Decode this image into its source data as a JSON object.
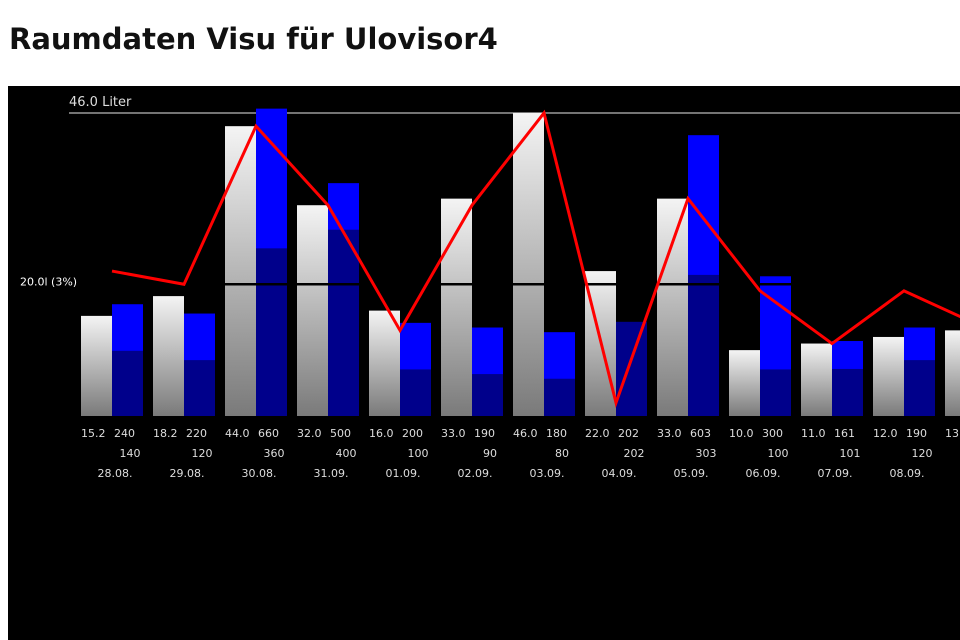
{
  "page": {
    "title": "Raumdaten Visu für Ulovisor4"
  },
  "chart_data": {
    "type": "bar",
    "max_label": "46.0 Liter",
    "ref_label": "20.0l (3%)",
    "ref_value": 20,
    "ylim": [
      0,
      50
    ],
    "y2lim": [
      0,
      700
    ],
    "categories": [
      "28.08.",
      "29.08.",
      "30.08.",
      "31.09.",
      "01.09.",
      "02.09.",
      "03.09.",
      "04.09.",
      "05.09.",
      "06.09.",
      "07.09.",
      "08.09.",
      ""
    ],
    "series": [
      {
        "values": [
          15.2,
          18.2,
          44.0,
          32.0,
          16.0,
          33.0,
          46.0,
          22.0,
          33.0,
          10.0,
          11.0,
          12.0,
          13
        ]
      },
      {
        "values": [
          240,
          220,
          660,
          500,
          200,
          190,
          180,
          202,
          603,
          300,
          161,
          190,
          null
        ]
      },
      {
        "values": [
          140,
          120,
          360,
          400,
          100,
          90,
          80,
          202,
          303,
          100,
          101,
          120,
          null
        ]
      },
      {
        "values": [
          22,
          20,
          44,
          32,
          13,
          32,
          46,
          2,
          33,
          19,
          11,
          19,
          14
        ]
      }
    ],
    "row1_labels": [
      [
        "15.2",
        "240"
      ],
      [
        "18.2",
        "220"
      ],
      [
        "44.0",
        "660"
      ],
      [
        "32.0",
        "500"
      ],
      [
        "16.0",
        "200"
      ],
      [
        "33.0",
        "190"
      ],
      [
        "46.0",
        "180"
      ],
      [
        "22.0",
        "202"
      ],
      [
        "33.0",
        "603"
      ],
      [
        "10.0",
        "300"
      ],
      [
        "11.0",
        "161"
      ],
      [
        "12.0",
        "190"
      ],
      [
        "13",
        ""
      ]
    ],
    "row2_labels": [
      "140",
      "120",
      "360",
      "400",
      "100",
      "90",
      "80",
      "202",
      "303",
      "100",
      "101",
      "120",
      ""
    ],
    "colors": {
      "background": "#000000",
      "bar_white_top": "#f4f4f4",
      "bar_white_bottom": "#7a7a7a",
      "bar_blue": "#0000ff",
      "bar_navy": "#00008b",
      "line": "#ff0000",
      "ref_line": "#000000",
      "text": "#dddddd"
    }
  }
}
